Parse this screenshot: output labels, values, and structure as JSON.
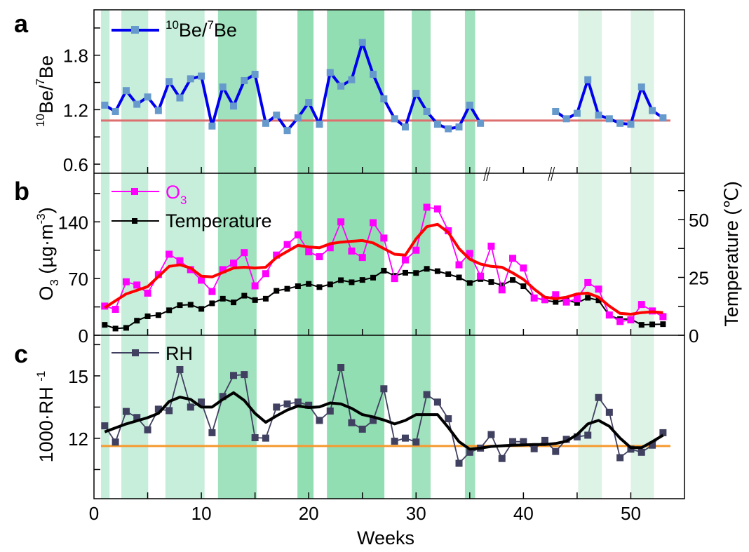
{
  "chart_data": {
    "type": "line",
    "xlabel": "Weeks",
    "xlim": [
      0,
      55
    ],
    "xticks": [
      0,
      10,
      20,
      30,
      40,
      50
    ],
    "x_minor_ticks": [
      5,
      15,
      25,
      35,
      45,
      55
    ],
    "axis_break_marks": [
      36.5,
      42.5
    ],
    "bands": [
      {
        "from": 0.65,
        "to": 1.45,
        "shade": "light",
        "color": "#c7eedb"
      },
      {
        "from": 2.55,
        "to": 5.05,
        "shade": "light",
        "color": "#c7eedb"
      },
      {
        "from": 6.65,
        "to": 10.3,
        "shade": "light",
        "color": "#c7eedb"
      },
      {
        "from": 11.55,
        "to": 15.15,
        "shade": "medium",
        "color": "#a0e2bd"
      },
      {
        "from": 18.95,
        "to": 20.45,
        "shade": "dark",
        "color": "#92deb3"
      },
      {
        "from": 21.7,
        "to": 27.05,
        "shade": "dark",
        "color": "#92deb3"
      },
      {
        "from": 29.6,
        "to": 31.35,
        "shade": "medium",
        "color": "#a0e2bd"
      },
      {
        "from": 34.55,
        "to": 35.5,
        "shade": "medium",
        "color": "#a0e2bd"
      },
      {
        "from": 45.1,
        "to": 47.3,
        "shade": "faint",
        "color": "#dcf3e5"
      },
      {
        "from": 50.0,
        "to": 52.15,
        "shade": "faint",
        "color": "#dcf3e5"
      }
    ],
    "panels": [
      {
        "id": "a",
        "letter": "a",
        "ylabel": "10Be/7Be",
        "ylabel_parts": {
          "sup1": "10",
          "base1": "Be/",
          "sup2": "7",
          "base2": "Be"
        },
        "ylim": [
          0.5,
          2.3
        ],
        "yticks": [
          0.6,
          1.2,
          1.8
        ],
        "y_minor_ticks": [
          0.9,
          1.5,
          2.1
        ],
        "grid": false,
        "legend": {
          "position": "top-left",
          "entries": [
            {
              "label_sup1": "10",
              "label_base1": "Be/",
              "label_sup2": "7",
              "label_base2": "Be",
              "color": "#0000ee",
              "marker_color": "#6699cc"
            }
          ]
        },
        "reference_line": {
          "y": 1.08,
          "color": "#dd6f6f"
        },
        "series": [
          {
            "name": "10Be/7Be",
            "color": "#0000ee",
            "marker_color": "#6699cc",
            "segments": [
              {
                "x": [
                  1,
                  2,
                  3,
                  4,
                  5,
                  6,
                  7,
                  8,
                  9,
                  10,
                  11,
                  12,
                  13,
                  14,
                  15,
                  16,
                  17,
                  18,
                  19,
                  20,
                  21,
                  22,
                  23,
                  24,
                  25,
                  26,
                  27,
                  28,
                  29,
                  30,
                  31,
                  32,
                  33,
                  34,
                  35,
                  36
                ],
                "y": [
                  1.25,
                  1.18,
                  1.41,
                  1.26,
                  1.34,
                  1.19,
                  1.51,
                  1.33,
                  1.54,
                  1.57,
                  1.02,
                  1.45,
                  1.24,
                  1.52,
                  1.59,
                  1.05,
                  1.14,
                  0.97,
                  1.11,
                  1.28,
                  1.04,
                  1.61,
                  1.46,
                  1.53,
                  1.94,
                  1.59,
                  1.32,
                  1.1,
                  1.01,
                  1.38,
                  1.18,
                  1.04,
                  0.99,
                  1.01,
                  1.25,
                  1.05
                ]
              },
              {
                "x": [
                  43,
                  44,
                  45,
                  46,
                  47,
                  48,
                  49,
                  50,
                  51,
                  52,
                  53
                ],
                "y": [
                  1.18,
                  1.1,
                  1.16,
                  1.53,
                  1.14,
                  1.1,
                  1.05,
                  1.04,
                  1.45,
                  1.19,
                  1.11
                ]
              }
            ]
          }
        ]
      },
      {
        "id": "b",
        "letter": "b",
        "ylabel": "O3 (µg·m-3)",
        "ylabel_parts": {
          "base1": "O",
          "sub1": "3",
          "base2": " (µg·m",
          "sup1": "-3",
          "base3": ")"
        },
        "ylim": [
          0,
          200
        ],
        "yticks": [
          0,
          70,
          140
        ],
        "y_minor_ticks": [
          35,
          105,
          175
        ],
        "y2label": "Temperature (℃)",
        "y2lim": [
          0,
          70
        ],
        "y2ticks": [
          0,
          25,
          50
        ],
        "y2_minor_ticks": [
          12.5,
          37.5,
          62.5
        ],
        "grid": false,
        "legend": {
          "position": "top-left",
          "entries": [
            {
              "label_base": "O",
              "label_sub": "3",
              "color": "#ff00ff"
            },
            {
              "label": "Temperature",
              "color": "#000000"
            }
          ]
        },
        "series": [
          {
            "name": "O3",
            "axis": "left",
            "color": "#ff00ff",
            "x": [
              1,
              2,
              3,
              4,
              5,
              6,
              7,
              8,
              9,
              10,
              11,
              12,
              13,
              14,
              15,
              16,
              17,
              18,
              19,
              20,
              21,
              22,
              23,
              24,
              25,
              26,
              27,
              28,
              29,
              30,
              31,
              32,
              33,
              34,
              35,
              36,
              37,
              38,
              39,
              40,
              41,
              42,
              43,
              44,
              45,
              46,
              47,
              48,
              49,
              50,
              51,
              52,
              53
            ],
            "y": [
              36,
              32,
              66,
              62,
              52,
              75,
              100,
              92,
              81,
              68,
              54,
              81,
              89,
              102,
              61,
              76,
              99,
              112,
              124,
              103,
              97,
              108,
              140,
              104,
              96,
              139,
              120,
              70,
              93,
              105,
              158,
              156,
              129,
              87,
              101,
              73,
              110,
              56,
              95,
              83,
              46,
              44,
              50,
              41,
              45,
              65,
              57,
              25,
              17,
              19,
              38,
              30,
              23
            ]
          },
          {
            "name": "O3 smoothed",
            "axis": "left",
            "color": "#ff0000",
            "x": [
              1,
              3,
              5,
              7,
              8,
              9,
              10,
              11,
              13,
              14,
              15,
              16,
              17,
              19,
              20,
              21,
              22,
              23,
              24,
              25,
              26,
              27,
              28,
              29,
              30,
              31,
              32,
              33,
              34,
              35,
              36,
              37,
              38,
              39,
              40,
              41,
              42,
              43,
              44,
              45,
              46,
              47,
              48,
              49,
              50,
              51,
              52,
              53
            ],
            "y": [
              34,
              51,
              60,
              85,
              87,
              83,
              73,
              72,
              83,
              84,
              83,
              84,
              96,
              111,
              109,
              108,
              113,
              115,
              116,
              117,
              114,
              107,
              100,
              99,
              119,
              134,
              137,
              127,
              107,
              94,
              88,
              85,
              84,
              77,
              69,
              57,
              47,
              45,
              47,
              51,
              52,
              47,
              36,
              27,
              26,
              28,
              29,
              28
            ]
          },
          {
            "name": "Temperature",
            "axis": "right",
            "color": "#000000",
            "x": [
              1,
              2,
              3,
              4,
              5,
              6,
              7,
              8,
              9,
              10,
              11,
              12,
              13,
              14,
              15,
              16,
              17,
              18,
              19,
              20,
              21,
              22,
              23,
              24,
              25,
              26,
              27,
              28,
              29,
              30,
              31,
              32,
              33,
              34,
              35,
              36,
              37,
              38,
              39,
              40,
              41,
              42,
              43,
              44,
              45,
              46,
              47,
              48,
              49,
              50,
              51,
              52,
              53
            ],
            "y": [
              4.5,
              2.9,
              3.2,
              6.3,
              8.2,
              8.7,
              10.8,
              13.0,
              13.2,
              11.4,
              13.8,
              15.8,
              14.2,
              17.1,
              15.2,
              15.8,
              19.2,
              20.1,
              21.2,
              22.2,
              20.8,
              22.0,
              23.8,
              22.9,
              23.9,
              24.9,
              27.9,
              25.7,
              27.0,
              26.9,
              28.7,
              27.7,
              26.4,
              25.0,
              22.6,
              24.3,
              23.0,
              21.6,
              23.9,
              21.2,
              16.3,
              15.1,
              14.4,
              15.2,
              14.0,
              16.2,
              15.1,
              8.5,
              7.0,
              7.0,
              4.5,
              4.7,
              4.8
            ]
          }
        ]
      },
      {
        "id": "c",
        "letter": "c",
        "ylabel": "1000·RH -1",
        "ylabel_parts": {
          "base1": "1000·RH ",
          "sup1": "-1"
        },
        "ylim": [
          9.1,
          16.95
        ],
        "yticks": [
          12,
          15
        ],
        "y_minor_ticks": [
          10.5,
          13.5,
          16.5
        ],
        "grid": false,
        "legend": {
          "position": "top-left",
          "entries": [
            {
              "label": "RH",
              "color": "#404060"
            }
          ]
        },
        "reference_line": {
          "y": 11.63,
          "color": "#f59a30"
        },
        "series": [
          {
            "name": "RH",
            "color": "#404060",
            "x": [
              1,
              2,
              3,
              4,
              5,
              6,
              7,
              8,
              9,
              10,
              11,
              12,
              13,
              14,
              15,
              16,
              17,
              18,
              19,
              20,
              21,
              22,
              23,
              24,
              25,
              26,
              27,
              28,
              29,
              30,
              31,
              32,
              33,
              34,
              35,
              36,
              37,
              38,
              39,
              40,
              41,
              42,
              43,
              44,
              45,
              46,
              47,
              48,
              49,
              50,
              51,
              52,
              53
            ],
            "y": [
              12.6,
              11.82,
              13.29,
              13.0,
              12.41,
              13.4,
              13.33,
              15.3,
              13.5,
              13.74,
              12.27,
              14.01,
              15.02,
              15.06,
              12.03,
              12.01,
              13.5,
              13.65,
              13.74,
              13.59,
              12.86,
              13.31,
              15.4,
              12.75,
              12.44,
              12.86,
              14.38,
              11.86,
              12.01,
              11.82,
              14.1,
              13.74,
              12.94,
              10.8,
              11.33,
              11.53,
              12.18,
              11.03,
              11.84,
              11.84,
              11.5,
              11.9,
              11.37,
              11.95,
              12.07,
              12.15,
              13.96,
              13.25,
              11.07,
              11.48,
              11.33,
              11.67,
              12.27
            ]
          },
          {
            "name": "RH smoothed",
            "color": "#000000",
            "x": [
              1,
              3,
              5,
              6,
              7,
              8,
              9,
              10,
              11,
              12,
              13,
              14,
              15,
              16,
              17,
              18,
              19,
              20,
              21,
              22,
              23,
              24,
              25,
              26,
              27,
              28,
              29,
              30,
              31,
              32,
              33,
              34,
              35,
              36,
              37,
              38,
              39,
              40,
              41,
              42,
              43,
              44,
              45,
              46,
              47,
              48,
              49,
              50,
              51,
              52,
              53
            ],
            "y": [
              12.31,
              12.69,
              12.99,
              13.2,
              13.77,
              13.98,
              13.87,
              13.5,
              13.5,
              13.87,
              14.19,
              13.82,
              13.2,
              12.77,
              13.08,
              13.36,
              13.55,
              13.48,
              13.51,
              13.7,
              13.65,
              13.44,
              13.14,
              13.03,
              12.88,
              12.69,
              12.86,
              13.14,
              13.14,
              13.14,
              12.52,
              11.84,
              11.48,
              11.53,
              11.61,
              11.64,
              11.67,
              11.68,
              11.7,
              11.7,
              11.75,
              11.86,
              12.18,
              12.69,
              12.86,
              12.58,
              12.01,
              11.55,
              11.55,
              11.84,
              12.15
            ]
          }
        ]
      }
    ]
  }
}
